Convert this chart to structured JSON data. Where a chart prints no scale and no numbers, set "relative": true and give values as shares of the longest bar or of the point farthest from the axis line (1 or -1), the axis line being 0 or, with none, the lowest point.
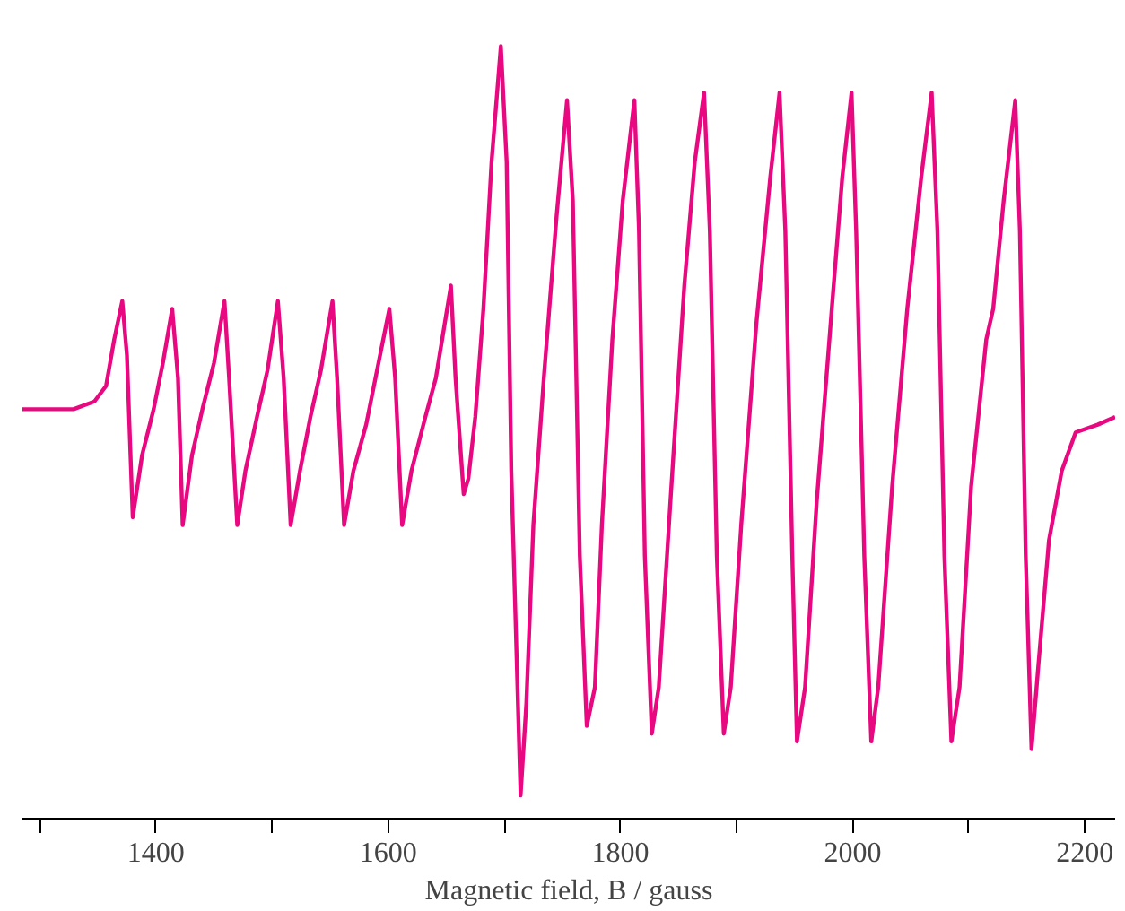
{
  "chart_data": {
    "type": "line",
    "relative": true,
    "xlabel": "Magnetic field, B / gauss",
    "xlim": [
      1285,
      2226
    ],
    "xticks": [
      {
        "value": 1300,
        "label": null
      },
      1400,
      {
        "value": 1500,
        "label": null
      },
      1600,
      {
        "value": 1700,
        "label": null
      },
      1800,
      {
        "value": 1900,
        "label": null
      },
      2000,
      {
        "value": 2100,
        "label": null
      },
      2200
    ],
    "grid": false,
    "marker": "none",
    "line_style": "solid",
    "series": [
      {
        "color": "#e8087f",
        "x": [
          1285,
          1329,
          1347,
          1357,
          1364,
          1371,
          1375,
          1380,
          1388,
          1398,
          1406,
          1414,
          1419,
          1423,
          1431,
          1440,
          1450,
          1459,
          1463,
          1470,
          1477,
          1487,
          1496,
          1505,
          1510,
          1516,
          1524,
          1533,
          1542,
          1552,
          1556,
          1562,
          1570,
          1581,
          1589,
          1601,
          1606,
          1612,
          1620,
          1632,
          1641,
          1654,
          1658,
          1665,
          1669,
          1675,
          1682,
          1689,
          1697,
          1702,
          1706,
          1714,
          1719,
          1725,
          1734,
          1745,
          1754,
          1759,
          1765,
          1771,
          1778,
          1784,
          1793,
          1802,
          1812,
          1816,
          1821,
          1827,
          1833,
          1843,
          1855,
          1864,
          1872,
          1877,
          1883,
          1889,
          1895,
          1904,
          1917,
          1929,
          1937,
          1942,
          1948,
          1952,
          1959,
          1969,
          1982,
          1991,
          1999,
          2003,
          2010,
          2016,
          2022,
          2034,
          2047,
          2059,
          2068,
          2073,
          2079,
          2085,
          2092,
          2102,
          2115,
          2121,
          2130,
          2140,
          2144,
          2149,
          2154,
          2160,
          2169,
          2180,
          2192,
          2211,
          2226
        ],
        "values": [
          0.53,
          0.53,
          0.54,
          0.56,
          0.62,
          0.67,
          0.6,
          0.39,
          0.47,
          0.53,
          0.59,
          0.66,
          0.57,
          0.38,
          0.47,
          0.53,
          0.59,
          0.67,
          0.57,
          0.38,
          0.45,
          0.52,
          0.58,
          0.67,
          0.57,
          0.38,
          0.45,
          0.52,
          0.58,
          0.67,
          0.57,
          0.38,
          0.45,
          0.51,
          0.57,
          0.66,
          0.57,
          0.38,
          0.45,
          0.52,
          0.57,
          0.69,
          0.57,
          0.42,
          0.44,
          0.52,
          0.66,
          0.85,
          1.0,
          0.85,
          0.45,
          0.03,
          0.15,
          0.38,
          0.57,
          0.78,
          0.93,
          0.8,
          0.34,
          0.12,
          0.17,
          0.38,
          0.62,
          0.8,
          0.93,
          0.76,
          0.34,
          0.11,
          0.17,
          0.41,
          0.69,
          0.85,
          0.94,
          0.76,
          0.34,
          0.11,
          0.17,
          0.38,
          0.64,
          0.83,
          0.94,
          0.76,
          0.34,
          0.1,
          0.17,
          0.41,
          0.66,
          0.83,
          0.94,
          0.76,
          0.34,
          0.1,
          0.17,
          0.43,
          0.66,
          0.83,
          0.94,
          0.76,
          0.34,
          0.1,
          0.17,
          0.43,
          0.62,
          0.66,
          0.8,
          0.93,
          0.76,
          0.34,
          0.09,
          0.2,
          0.36,
          0.45,
          0.5,
          0.51,
          0.52
        ]
      }
    ]
  }
}
